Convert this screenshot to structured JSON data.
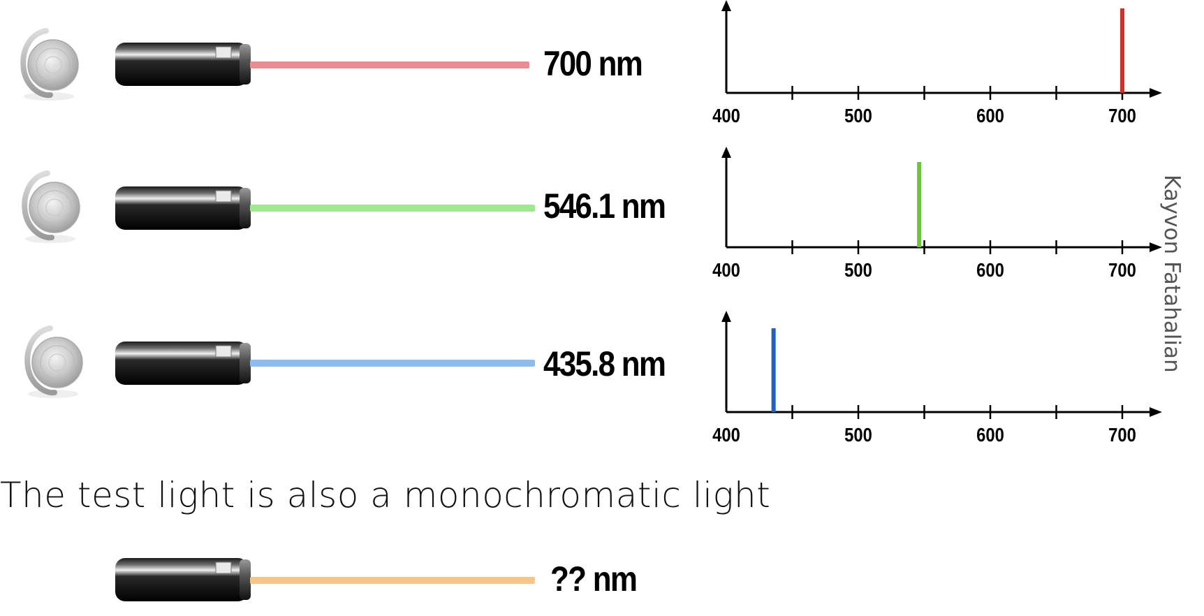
{
  "lasers": [
    {
      "label": "700 nm",
      "beam_color": "#e98c91"
    },
    {
      "label": "546.1 nm",
      "beam_color": "#9fe88f"
    },
    {
      "label": "435.8 nm",
      "beam_color": "#8fbcee"
    },
    {
      "label": "?? nm",
      "beam_color": "#f5c689"
    }
  ],
  "caption": "The test light is also a monochromatic light",
  "credit": "Kayvon Fatahalian",
  "icons": [
    "knob-icon",
    "laser-pointer-icon"
  ],
  "chart_data": [
    {
      "type": "bar",
      "x_ticks": [
        400,
        500,
        600,
        700
      ],
      "xlim": [
        400,
        700
      ],
      "lines": [
        {
          "wavelength": 700,
          "color": "#d0302b"
        }
      ]
    },
    {
      "type": "bar",
      "x_ticks": [
        400,
        500,
        600,
        700
      ],
      "xlim": [
        400,
        700
      ],
      "lines": [
        {
          "wavelength": 546.1,
          "color": "#6cc43c"
        }
      ]
    },
    {
      "type": "bar",
      "x_ticks": [
        400,
        500,
        600,
        700
      ],
      "xlim": [
        400,
        700
      ],
      "lines": [
        {
          "wavelength": 435.8,
          "color": "#1e63c0"
        }
      ]
    }
  ]
}
